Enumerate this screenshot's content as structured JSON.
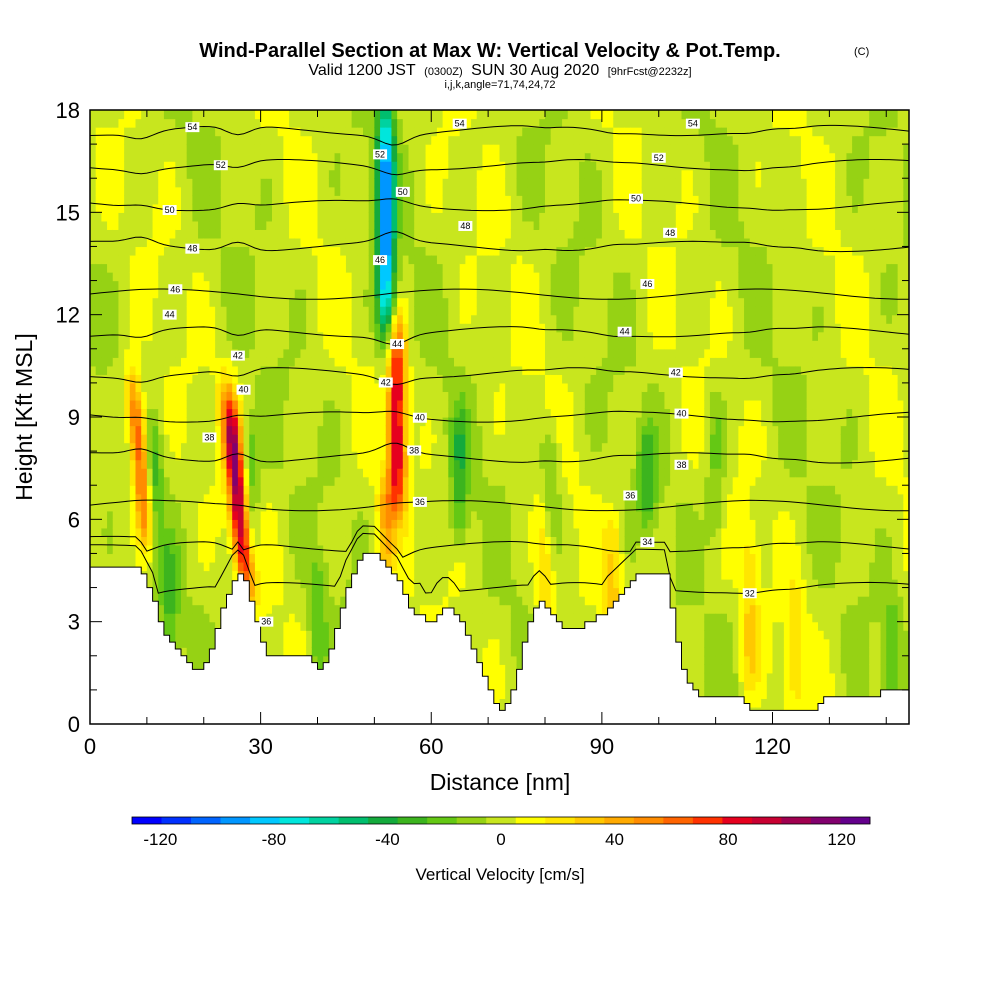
{
  "chart_data": {
    "type": "heatmap",
    "title": "Wind-Parallel Section at Max W: Vertical Velocity & Pot.Temp.",
    "title_mark": "(C)",
    "subtitle": {
      "valid": "Valid 1200 JST",
      "utc": "(0300Z)",
      "date": "SUN 30 Aug 2020",
      "forecast": "[9hrFcst@2232z]"
    },
    "subtitle2": "i,j,k,angle=71,74,24,72",
    "xlabel": "Distance [nm]",
    "ylabel": "Height [Kft MSL]",
    "xlim": [
      0,
      144
    ],
    "ylim": [
      0,
      18
    ],
    "x_ticks": [
      "0",
      "30",
      "60",
      "90",
      "120"
    ],
    "y_ticks": [
      "0",
      "3",
      "6",
      "9",
      "12",
      "15",
      "18"
    ],
    "colorbar": {
      "label": "Vertical Velocity [cm/s]",
      "range": [
        -130,
        130
      ],
      "ticks": [
        "-120",
        "-80",
        "-40",
        "0",
        "40",
        "80",
        "120"
      ],
      "colors": [
        "#0000ff",
        "#0030ff",
        "#0064ff",
        "#0096ff",
        "#00c8ff",
        "#00e6dc",
        "#00d2a0",
        "#00be6e",
        "#14aa3c",
        "#3cb41e",
        "#64c814",
        "#96d214",
        "#c8e61e",
        "#ffff00",
        "#ffe600",
        "#ffc800",
        "#ffaa00",
        "#ff8c00",
        "#ff6400",
        "#ff3200",
        "#e6001e",
        "#c80032",
        "#a00050",
        "#82006e",
        "#64008c"
      ]
    },
    "updrafts": [
      {
        "x": 9,
        "amp": 75,
        "z0": 5.5,
        "z1": 9.5
      },
      {
        "x": 26,
        "amp": 110,
        "z0": 4.5,
        "z1": 9
      },
      {
        "x": 54,
        "amp": 90,
        "z0": 7,
        "z1": 11
      },
      {
        "x": 52,
        "amp": 35,
        "z0": 5,
        "z1": 6.5
      },
      {
        "x": 80,
        "amp": 25,
        "z0": 3,
        "z1": 6
      },
      {
        "x": 92,
        "amp": 25,
        "z0": 3,
        "z1": 5.5
      },
      {
        "x": 116,
        "amp": 25,
        "z0": 1.5,
        "z1": 5
      },
      {
        "x": 124,
        "amp": 20,
        "z0": 1,
        "z1": 3.5
      }
    ],
    "downdrafts": [
      {
        "x": 52,
        "amp": -95,
        "z0": 12,
        "z1": 17.5
      },
      {
        "x": 11,
        "amp": -35,
        "z0": 5,
        "z1": 8
      },
      {
        "x": 28,
        "amp": -30,
        "z0": 5,
        "z1": 8
      },
      {
        "x": 65,
        "amp": -30,
        "z0": 6,
        "z1": 8.5
      },
      {
        "x": 81,
        "amp": -25,
        "z0": 6,
        "z1": 8
      },
      {
        "x": 98,
        "amp": -30,
        "z0": 6.5,
        "z1": 8
      },
      {
        "x": 14,
        "amp": -25,
        "z0": 2.5,
        "z1": 4.5
      },
      {
        "x": 40,
        "amp": -25,
        "z0": 2,
        "z1": 4
      },
      {
        "x": 110,
        "amp": -20,
        "z0": 6,
        "z1": 9
      },
      {
        "x": 141,
        "amp": -25,
        "z0": 1,
        "z1": 3
      }
    ],
    "terrain_heights_kft": [
      4.6,
      4.6,
      4.6,
      4.6,
      4.6,
      4.6,
      4.6,
      4.6,
      4.6,
      4.4,
      4.0,
      3.6,
      3.0,
      2.6,
      2.4,
      2.2,
      2.0,
      1.8,
      1.6,
      1.6,
      1.8,
      2.2,
      2.8,
      3.4,
      3.8,
      4.2,
      4.4,
      4.2,
      3.6,
      3.0,
      2.4,
      2.0,
      2.0,
      2.0,
      2.0,
      2.0,
      2.0,
      2.0,
      2.0,
      1.8,
      1.6,
      1.8,
      2.2,
      2.8,
      3.4,
      4.0,
      4.4,
      4.8,
      5.0,
      5.0,
      5.0,
      4.8,
      4.6,
      4.4,
      4.2,
      3.8,
      3.4,
      3.2,
      3.2,
      3.0,
      3.0,
      3.2,
      3.4,
      3.4,
      3.2,
      3.0,
      2.6,
      2.2,
      1.8,
      1.4,
      1.0,
      0.6,
      0.4,
      0.6,
      1.0,
      1.6,
      2.4,
      3.0,
      3.4,
      3.6,
      3.4,
      3.2,
      3.0,
      2.8,
      2.8,
      2.8,
      2.8,
      3.0,
      3.0,
      3.2,
      3.2,
      3.4,
      3.6,
      3.8,
      4.0,
      4.2,
      4.4,
      4.4,
      4.4,
      4.4,
      4.4,
      4.4,
      3.4,
      2.4,
      1.6,
      1.2,
      1.0,
      0.8,
      0.8,
      0.8,
      0.8,
      0.8,
      0.8,
      0.8,
      0.8,
      0.6,
      0.4,
      0.4,
      0.4,
      0.4,
      0.4,
      0.4,
      0.4,
      0.4,
      0.4,
      0.4,
      0.4,
      0.4,
      0.6,
      0.8,
      0.8,
      0.8,
      0.8,
      0.8,
      0.8,
      0.8,
      0.8,
      0.8,
      0.8,
      1.0,
      1.0,
      1.0,
      1.0,
      1.0
    ],
    "isentropes": [
      {
        "theta": 32,
        "label": "32",
        "z": 4.0,
        "label_x": 116
      },
      {
        "theta": 34,
        "label": "34",
        "z": 5.2,
        "label_x": 98
      },
      {
        "theta": 36,
        "label": "36",
        "z": 6.4,
        "label_x": 58
      },
      {
        "theta": 38,
        "label": "38",
        "z": 7.8,
        "label_x": 57
      },
      {
        "theta": 40,
        "label": "40",
        "z": 9.0,
        "label_x": 58
      },
      {
        "theta": 42,
        "label": "42",
        "z": 10.3,
        "label_x": 52
      },
      {
        "theta": 44,
        "label": "44",
        "z": 11.5,
        "label_x": 54
      },
      {
        "theta": 46,
        "label": "46",
        "z": 12.6,
        "label_x": 15
      },
      {
        "theta": 48,
        "label": "48",
        "z": 14.0,
        "label_x": 18
      },
      {
        "theta": 50,
        "label": "50",
        "z": 15.2,
        "label_x": 14
      },
      {
        "theta": 52,
        "label": "52",
        "z": 16.4,
        "label_x": 23
      },
      {
        "theta": 54,
        "label": "54",
        "z": 17.4,
        "label_x": 18
      }
    ],
    "isentrope_extra_labels": [
      {
        "label": "36",
        "x": 31,
        "z": 3.0
      },
      {
        "label": "36",
        "x": 95,
        "z": 6.7
      },
      {
        "label": "38",
        "x": 21,
        "z": 8.4
      },
      {
        "label": "38",
        "x": 104,
        "z": 7.6
      },
      {
        "label": "40",
        "x": 27,
        "z": 9.8
      },
      {
        "label": "40",
        "x": 104,
        "z": 9.1
      },
      {
        "label": "42",
        "x": 26,
        "z": 10.8
      },
      {
        "label": "42",
        "x": 103,
        "z": 10.3
      },
      {
        "label": "44",
        "x": 14,
        "z": 12.0
      },
      {
        "label": "44",
        "x": 94,
        "z": 11.5
      },
      {
        "label": "46",
        "x": 51,
        "z": 13.6
      },
      {
        "label": "46",
        "x": 98,
        "z": 12.9
      },
      {
        "label": "48",
        "x": 66,
        "z": 14.6
      },
      {
        "label": "48",
        "x": 102,
        "z": 14.4
      },
      {
        "label": "50",
        "x": 55,
        "z": 15.6
      },
      {
        "label": "50",
        "x": 96,
        "z": 15.4
      },
      {
        "label": "52",
        "x": 51,
        "z": 16.7
      },
      {
        "label": "52",
        "x": 100,
        "z": 16.6
      },
      {
        "label": "54",
        "x": 65,
        "z": 17.6
      },
      {
        "label": "54",
        "x": 106,
        "z": 17.6
      }
    ]
  }
}
